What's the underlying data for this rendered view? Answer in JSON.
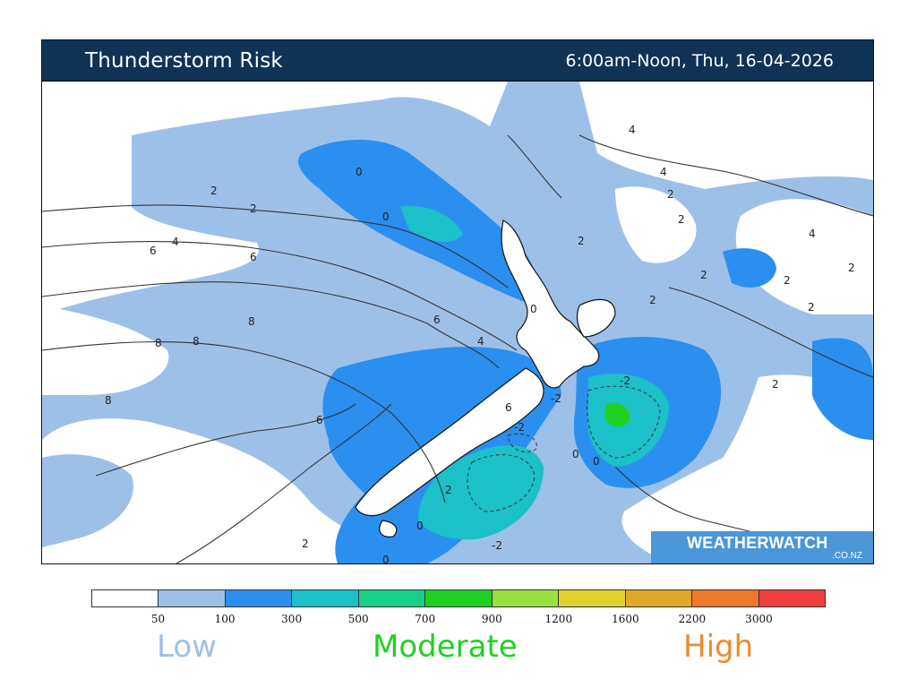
{
  "header": {
    "title": "Thunderstorm Risk",
    "datetime": "6:00am-Noon, Thu, 16-04-2026"
  },
  "brand": {
    "name_part1": "WEATHER",
    "name_part2": "WATCH",
    "sub": ".CO.NZ"
  },
  "legend": {
    "colors": [
      "#ffffff",
      "#9dc0e8",
      "#2b8ff0",
      "#1bc0c8",
      "#18cf88",
      "#20d020",
      "#98e040",
      "#e0d030",
      "#e0a828",
      "#ec7828",
      "#f04040"
    ],
    "ticks": [
      "50",
      "100",
      "300",
      "500",
      "700",
      "900",
      "1200",
      "1600",
      "2200",
      "3000"
    ]
  },
  "risk_labels": {
    "low": "Low",
    "low_color": "#9dc0e8",
    "moderate": "Moderate",
    "moderate_color": "#20d020",
    "high": "High",
    "high_color": "#ec8a30"
  },
  "contour_labels": [
    "0",
    "0",
    "0",
    "2",
    "2",
    "2",
    "2",
    "2",
    "2",
    "2",
    "2",
    "2",
    "2",
    "2",
    "2",
    "4",
    "4",
    "4",
    "4",
    "4",
    "6",
    "6",
    "6",
    "6",
    "8",
    "8",
    "8",
    "8",
    "0",
    "0",
    "0",
    "0",
    "2",
    "2",
    "-2",
    "-2",
    "-2",
    "-2",
    "4",
    "6"
  ]
}
